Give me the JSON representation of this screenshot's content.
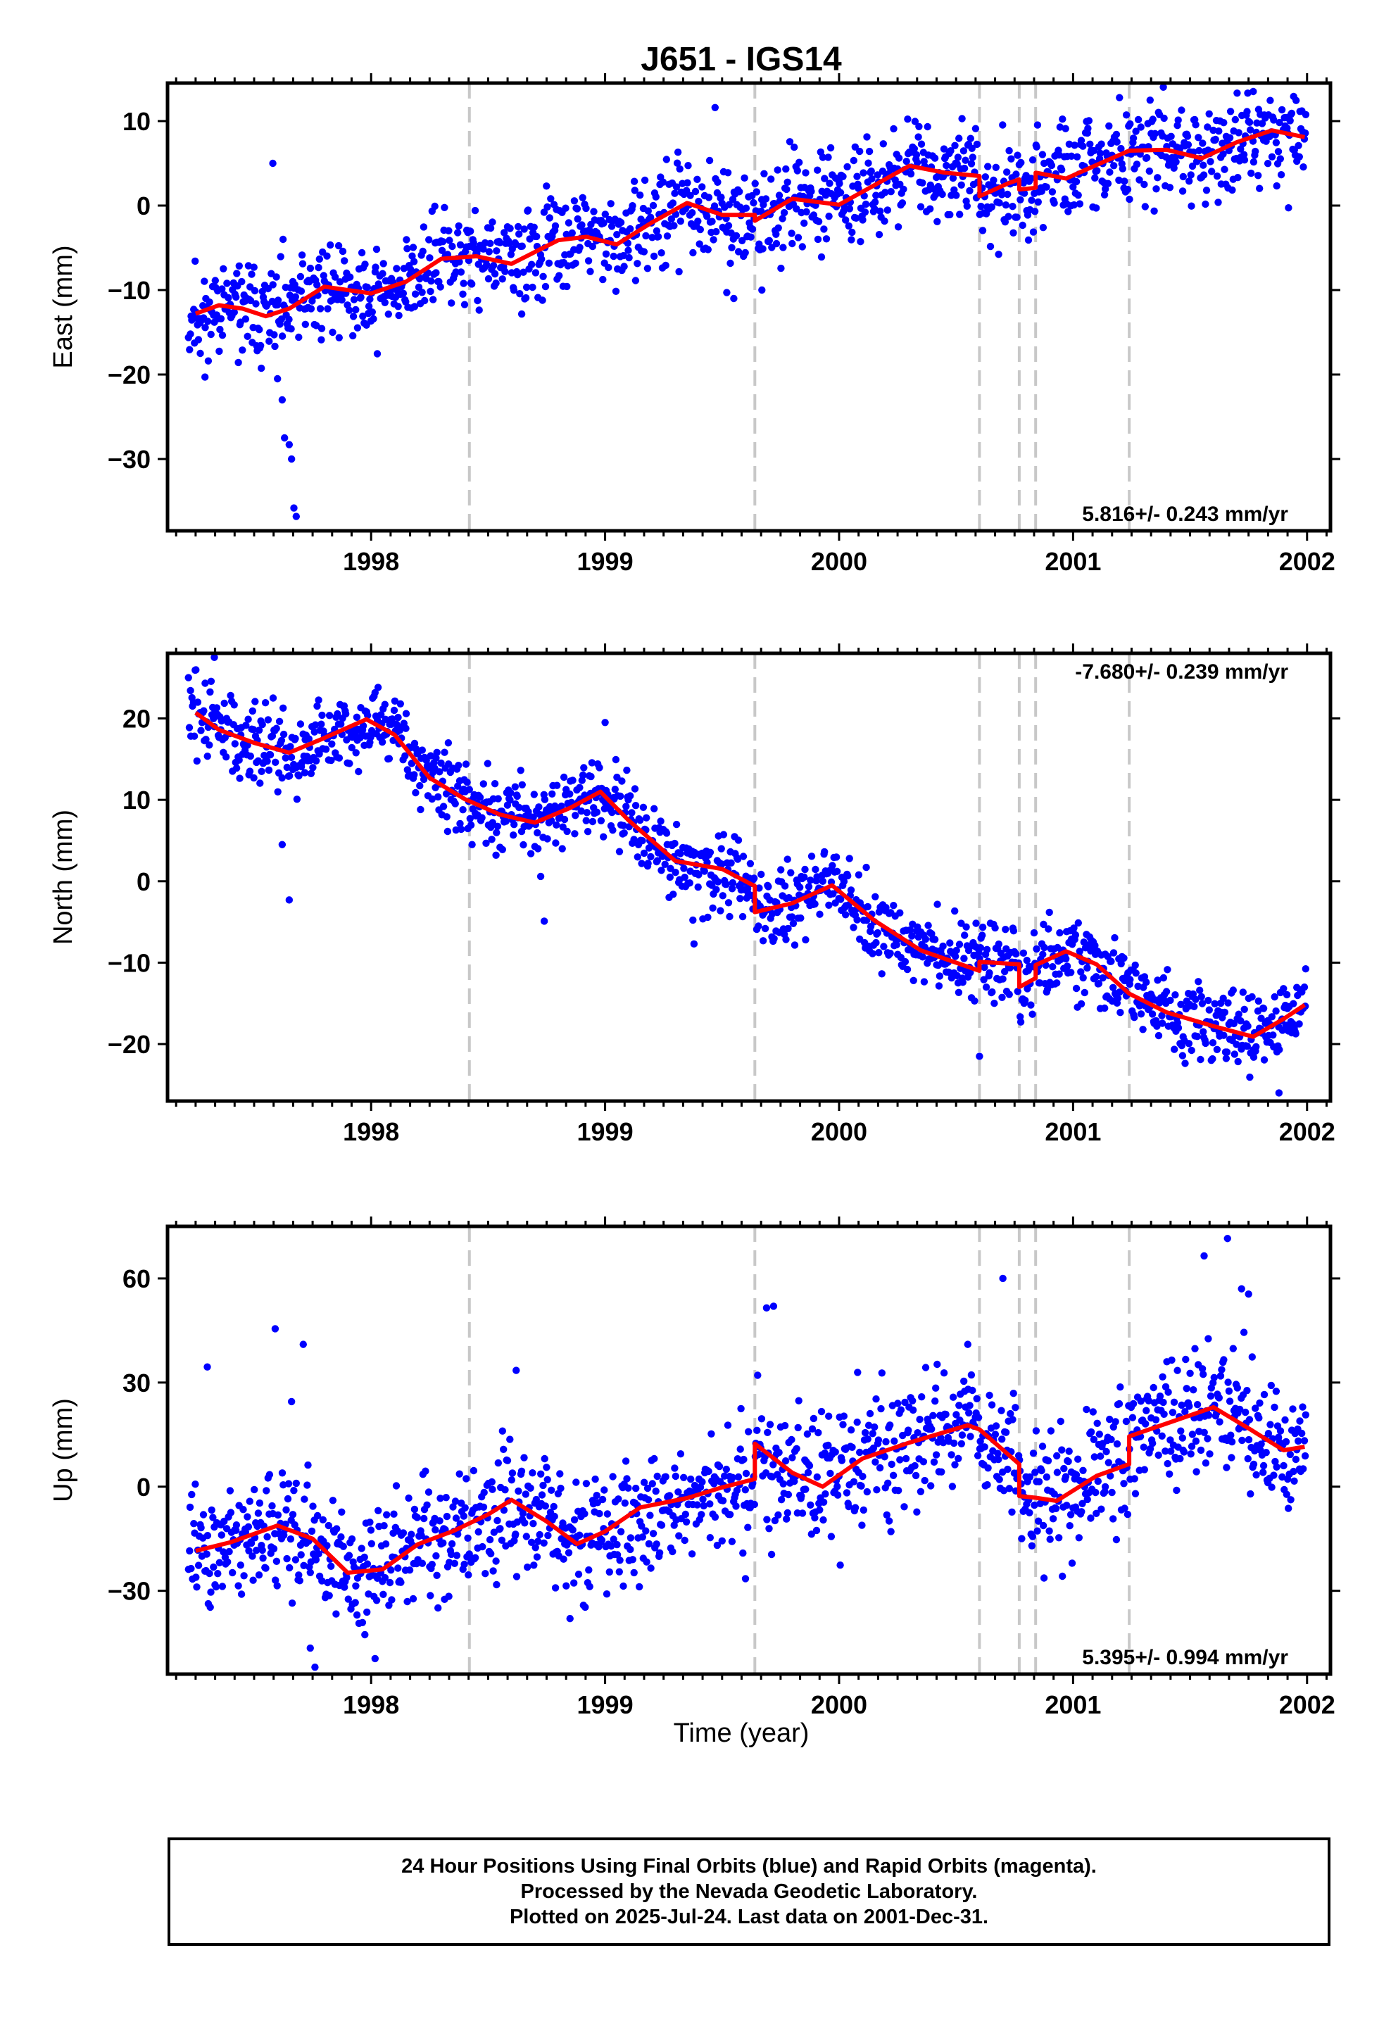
{
  "colors": {
    "points": "#0000ff",
    "model": "#ff0000",
    "offset_line": "#c8c8c8",
    "frame": "#000000"
  },
  "chart_data": {
    "title": "J651 - IGS14",
    "type": "scatter",
    "xlabel": "Time (year)",
    "x_ticks": [
      "1998",
      "1999",
      "2000",
      "2001",
      "2002"
    ],
    "xlim": [
      1997.13,
      2002.1
    ],
    "offset_epochs": [
      1998.42,
      1999.64,
      2000.6,
      2000.77,
      2000.84,
      2001.24
    ],
    "panels": [
      {
        "name": "east",
        "ylabel": "East (mm)",
        "ylim": [
          -38.5,
          14.5
        ],
        "y_ticks": [
          10,
          0,
          -10,
          -20,
          -30
        ],
        "rate_text": "5.816+/- 0.243 mm/yr",
        "rate_position": "bottom-right",
        "model": [
          [
            1997.25,
            -12.8
          ],
          [
            1997.35,
            -11.8
          ],
          [
            1997.45,
            -12.2
          ],
          [
            1997.55,
            -13.1
          ],
          [
            1997.65,
            -12.2
          ],
          [
            1997.8,
            -9.6
          ],
          [
            1998.0,
            -10.4
          ],
          [
            1998.15,
            -9.0
          ],
          [
            1998.3,
            -6.3
          ],
          [
            1998.45,
            -6.0
          ],
          [
            1998.6,
            -6.9
          ],
          [
            1998.8,
            -4.1
          ],
          [
            1998.92,
            -3.7
          ],
          [
            1999.05,
            -4.6
          ],
          [
            1999.2,
            -2.0
          ],
          [
            1999.35,
            0.3
          ],
          [
            1999.5,
            -1.1
          ],
          [
            1999.64,
            -1.1
          ],
          [
            1999.64,
            -1.8
          ],
          [
            1999.8,
            0.8
          ],
          [
            2000.0,
            0.1
          ],
          [
            2000.15,
            2.4
          ],
          [
            2000.3,
            4.7
          ],
          [
            2000.45,
            3.9
          ],
          [
            2000.6,
            3.5
          ],
          [
            2000.6,
            1.1
          ],
          [
            2000.72,
            2.6
          ],
          [
            2000.77,
            3.1
          ],
          [
            2000.77,
            1.9
          ],
          [
            2000.84,
            2.1
          ],
          [
            2000.84,
            3.9
          ],
          [
            2000.97,
            3.2
          ],
          [
            2001.1,
            4.8
          ],
          [
            2001.24,
            6.5
          ],
          [
            2001.4,
            6.6
          ],
          [
            2001.55,
            5.6
          ],
          [
            2001.7,
            7.5
          ],
          [
            2001.85,
            8.9
          ],
          [
            2001.99,
            8.1
          ]
        ],
        "scatter": {
          "count": 1350,
          "noise": 2.8,
          "seed": 11,
          "outliers": [
            [
              1997.58,
              5.0
            ],
            [
              1997.6,
              -20.5
            ],
            [
              1997.62,
              -23.0
            ],
            [
              1997.63,
              -27.5
            ],
            [
              1997.65,
              -28.3
            ],
            [
              1997.66,
              -30.0
            ],
            [
              1997.67,
              -35.8
            ],
            [
              1997.68,
              -36.8
            ],
            [
              1997.27,
              -17.5
            ],
            [
              1997.29,
              -20.3
            ],
            [
              1999.47,
              11.6
            ],
            [
              1999.52,
              -10.3
            ],
            [
              1999.55,
              -11.0
            ],
            [
              1999.67,
              -10.0
            ],
            [
              2001.77,
              13.5
            ]
          ]
        }
      },
      {
        "name": "north",
        "ylabel": "North (mm)",
        "ylim": [
          -27,
          28
        ],
        "y_ticks": [
          20,
          10,
          0,
          -10,
          -20
        ],
        "rate_text": "-7.680+/- 0.239 mm/yr",
        "rate_position": "top-right",
        "model": [
          [
            1997.25,
            20.7
          ],
          [
            1997.35,
            18.6
          ],
          [
            1997.5,
            17.0
          ],
          [
            1997.65,
            15.8
          ],
          [
            1997.8,
            17.6
          ],
          [
            1997.98,
            19.9
          ],
          [
            1998.1,
            18.0
          ],
          [
            1998.25,
            12.7
          ],
          [
            1998.4,
            10.1
          ],
          [
            1998.55,
            8.2
          ],
          [
            1998.7,
            7.2
          ],
          [
            1998.85,
            9.0
          ],
          [
            1998.98,
            11.0
          ],
          [
            1999.1,
            7.5
          ],
          [
            1999.3,
            2.5
          ],
          [
            1999.5,
            1.5
          ],
          [
            1999.64,
            -0.6
          ],
          [
            1999.64,
            -3.8
          ],
          [
            1999.8,
            -2.7
          ],
          [
            1999.97,
            -0.5
          ],
          [
            2000.15,
            -4.8
          ],
          [
            2000.35,
            -8.5
          ],
          [
            2000.6,
            -11.0
          ],
          [
            2000.6,
            -9.9
          ],
          [
            2000.77,
            -10.2
          ],
          [
            2000.77,
            -13.0
          ],
          [
            2000.84,
            -11.9
          ],
          [
            2000.84,
            -10.3
          ],
          [
            2000.97,
            -8.6
          ],
          [
            2001.1,
            -10.2
          ],
          [
            2001.24,
            -13.8
          ],
          [
            2001.4,
            -16.1
          ],
          [
            2001.6,
            -17.8
          ],
          [
            2001.77,
            -19.1
          ],
          [
            2001.9,
            -16.9
          ],
          [
            2001.99,
            -15.2
          ]
        ],
        "scatter": {
          "count": 1350,
          "noise": 2.4,
          "seed": 29,
          "outliers": [
            [
              1997.33,
              27.5
            ],
            [
              1997.65,
              -2.3
            ],
            [
              1997.62,
              4.5
            ],
            [
              1998.74,
              -4.9
            ],
            [
              1999.38,
              -7.7
            ],
            [
              2000.6,
              -21.5
            ],
            [
              2001.88,
              -26.0
            ],
            [
              1998.33,
              17.0
            ],
            [
              1999.0,
              19.5
            ]
          ]
        }
      },
      {
        "name": "up",
        "ylabel": "Up (mm)",
        "ylim": [
          -54,
          75
        ],
        "y_ticks": [
          60,
          30,
          0,
          -30
        ],
        "rate_text": "5.395+/- 0.994 mm/yr",
        "rate_position": "bottom-right",
        "model": [
          [
            1997.25,
            -18.5
          ],
          [
            1997.4,
            -16.0
          ],
          [
            1997.6,
            -11.2
          ],
          [
            1997.75,
            -15.0
          ],
          [
            1997.9,
            -24.8
          ],
          [
            1998.05,
            -23.8
          ],
          [
            1998.2,
            -16.6
          ],
          [
            1998.35,
            -12.8
          ],
          [
            1998.5,
            -8.0
          ],
          [
            1998.6,
            -3.8
          ],
          [
            1998.75,
            -10.0
          ],
          [
            1998.88,
            -16.5
          ],
          [
            1999.0,
            -12.9
          ],
          [
            1999.15,
            -6.0
          ],
          [
            1999.35,
            -3.3
          ],
          [
            1999.5,
            -0.2
          ],
          [
            1999.64,
            2.2
          ],
          [
            1999.64,
            12.4
          ],
          [
            1999.8,
            4.0
          ],
          [
            1999.93,
            0.0
          ],
          [
            2000.1,
            8.1
          ],
          [
            2000.3,
            12.7
          ],
          [
            2000.55,
            17.7
          ],
          [
            2000.6,
            16.5
          ],
          [
            2000.77,
            6.5
          ],
          [
            2000.77,
            -2.7
          ],
          [
            2000.84,
            -3.2
          ],
          [
            2000.93,
            -4.1
          ],
          [
            2001.1,
            3.1
          ],
          [
            2001.24,
            6.5
          ],
          [
            2001.24,
            14.5
          ],
          [
            2001.4,
            18.2
          ],
          [
            2001.6,
            22.9
          ],
          [
            2001.75,
            16.8
          ],
          [
            2001.9,
            10.5
          ],
          [
            2001.99,
            11.5
          ]
        ],
        "scatter": {
          "count": 1350,
          "noise": 9.0,
          "seed": 47,
          "outliers": [
            [
              1997.59,
              45.5
            ],
            [
              1997.71,
              41.0
            ],
            [
              1997.66,
              24.5
            ],
            [
              1997.74,
              -46.5
            ],
            [
              1997.76,
              -52.0
            ],
            [
              1997.3,
              34.5
            ],
            [
              1998.62,
              33.5
            ],
            [
              1999.69,
              51.5
            ],
            [
              1999.72,
              52.0
            ],
            [
              2000.55,
              41.0
            ],
            [
              2000.7,
              60.0
            ],
            [
              2001.56,
              66.5
            ],
            [
              2001.66,
              71.5
            ],
            [
              2001.72,
              57.0
            ],
            [
              2001.75,
              55.5
            ],
            [
              1999.6,
              -26.5
            ],
            [
              1998.85,
              -38.0
            ]
          ]
        }
      }
    ]
  },
  "footer": {
    "line1": "24 Hour Positions Using Final Orbits (blue) and Rapid Orbits (magenta).",
    "line2": "Processed by the Nevada Geodetic Laboratory.",
    "line3": "Plotted on 2025-Jul-24. Last data on 2001-Dec-31."
  }
}
